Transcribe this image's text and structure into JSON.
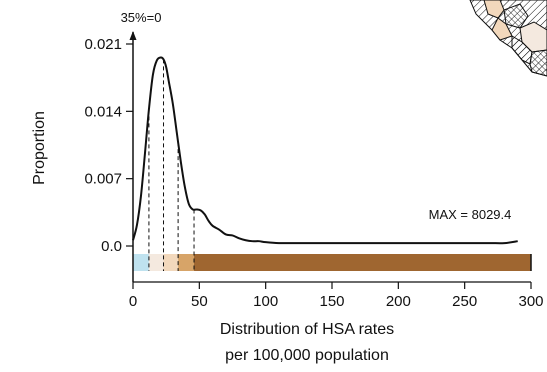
{
  "chart_data": {
    "type": "area",
    "title": "",
    "xlabel_lines": [
      "Distribution of HSA rates",
      "per 100,000 population"
    ],
    "ylabel": "Proportion",
    "xlim": [
      0,
      300
    ],
    "ylim": [
      0,
      0.021
    ],
    "x_ticks": [
      {
        "value": 0,
        "label": "0"
      },
      {
        "value": 50,
        "label": "50"
      },
      {
        "value": 100,
        "label": "100"
      },
      {
        "value": 150,
        "label": "150"
      },
      {
        "value": 200,
        "label": "200"
      },
      {
        "value": 250,
        "label": "250"
      },
      {
        "value": 300,
        "label": "300"
      }
    ],
    "y_ticks": [
      {
        "value": 0,
        "label": "0.0"
      },
      {
        "value": 0.007,
        "label": "0.007"
      },
      {
        "value": 0.014,
        "label": "0.014"
      },
      {
        "value": 0.021,
        "label": "0.021"
      }
    ],
    "axis_top_note": "35%=0",
    "max_note": "MAX =  8029.4",
    "density": {
      "x": [
        0,
        3,
        6,
        9,
        12,
        15,
        18,
        21,
        23,
        25,
        27,
        30,
        33,
        36,
        39,
        42,
        45,
        48,
        51,
        54,
        57,
        60,
        65,
        70,
        75,
        80,
        85,
        90,
        95,
        100,
        110,
        120,
        130,
        140,
        150,
        160,
        170,
        180,
        190,
        200,
        210,
        220,
        230,
        240,
        250,
        260,
        270,
        280,
        290
      ],
      "y": [
        0.0006,
        0.0022,
        0.0052,
        0.0096,
        0.0142,
        0.0178,
        0.0193,
        0.0196,
        0.0194,
        0.0186,
        0.0171,
        0.0148,
        0.0118,
        0.0088,
        0.0062,
        0.0044,
        0.0038,
        0.0038,
        0.0037,
        0.0033,
        0.0026,
        0.0021,
        0.0017,
        0.0012,
        0.0011,
        0.0008,
        0.0006,
        0.0005,
        0.0005,
        0.0004,
        0.0003,
        0.0003,
        0.0003,
        0.0003,
        0.0003,
        0.0003,
        0.0003,
        0.0003,
        0.0003,
        0.0003,
        0.0003,
        0.0003,
        0.0003,
        0.0003,
        0.0003,
        0.0003,
        0.0003,
        0.0003,
        0.0005
      ]
    },
    "quantile_lines_x": [
      12,
      23,
      34,
      46
    ],
    "color_bands": [
      {
        "from": 0,
        "to": 12,
        "color": "#bfe2ef"
      },
      {
        "from": 12,
        "to": 23,
        "color": "#f4e9df"
      },
      {
        "from": 23,
        "to": 34,
        "color": "#f2d8bc"
      },
      {
        "from": 34,
        "to": 46,
        "color": "#d7a468"
      },
      {
        "from": 46,
        "to": 300,
        "color": "#9f6630"
      }
    ],
    "colors": {
      "curve": "#111111",
      "axis": "#111111"
    }
  },
  "inset_map": {
    "icon": "hatched-region-map"
  }
}
